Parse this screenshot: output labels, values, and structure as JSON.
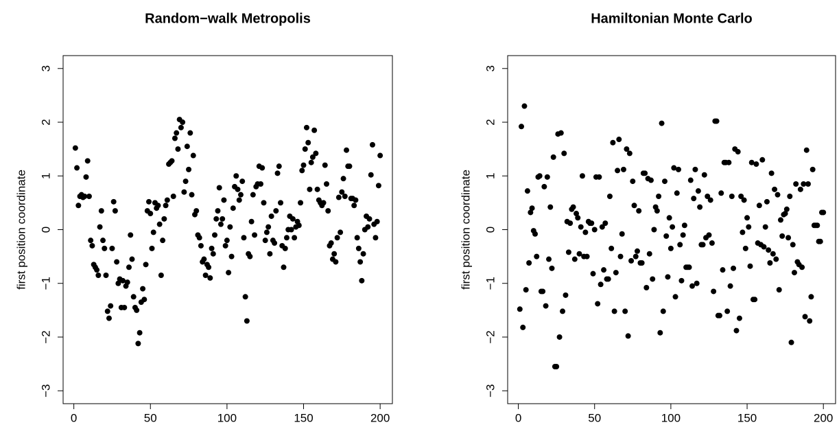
{
  "chart_data": [
    {
      "type": "scatter",
      "title": "Random−walk Metropolis",
      "ylabel": "first position coordinate",
      "color": "#000000",
      "x": [
        1,
        2,
        3,
        4,
        5,
        6,
        7,
        8,
        9,
        10,
        11,
        12,
        13,
        14,
        15,
        16,
        17,
        18,
        19,
        20,
        21,
        22,
        23,
        24,
        25,
        26,
        27,
        28,
        29,
        30,
        31,
        32,
        33,
        34,
        35,
        36,
        37,
        38,
        39,
        40,
        41,
        42,
        43,
        44,
        45,
        46,
        47,
        48,
        49,
        50,
        51,
        52,
        53,
        54,
        55,
        56,
        57,
        58,
        59,
        60,
        61,
        62,
        63,
        64,
        65,
        66,
        67,
        68,
        69,
        70,
        71,
        72,
        73,
        74,
        75,
        76,
        77,
        78,
        79,
        80,
        81,
        82,
        83,
        84,
        85,
        86,
        87,
        88,
        89,
        90,
        91,
        92,
        93,
        94,
        95,
        96,
        97,
        98,
        99,
        100,
        101,
        102,
        103,
        104,
        105,
        106,
        107,
        108,
        109,
        110,
        111,
        112,
        113,
        114,
        115,
        116,
        117,
        118,
        119,
        120,
        121,
        122,
        123,
        124,
        125,
        126,
        127,
        128,
        129,
        130,
        131,
        132,
        133,
        134,
        135,
        136,
        137,
        138,
        139,
        140,
        141,
        142,
        143,
        144,
        145,
        146,
        147,
        148,
        149,
        150,
        151,
        152,
        153,
        154,
        155,
        156,
        157,
        158,
        159,
        160,
        161,
        162,
        163,
        164,
        165,
        166,
        167,
        168,
        169,
        170,
        171,
        172,
        173,
        174,
        175,
        176,
        177,
        178,
        179,
        180,
        181,
        182,
        183,
        184,
        185,
        186,
        187,
        188,
        189,
        190,
        191,
        192,
        193,
        194,
        195,
        196,
        197,
        198,
        199,
        200
      ],
      "values": [
        1.52,
        1.15,
        0.45,
        0.62,
        0.65,
        0.6,
        0.62,
        0.98,
        1.28,
        0.62,
        -0.2,
        -0.3,
        -0.65,
        -0.7,
        -0.75,
        -0.85,
        0.05,
        0.35,
        -0.2,
        -0.35,
        -0.85,
        -1.52,
        -1.65,
        -1.42,
        -0.35,
        0.52,
        0.35,
        -0.6,
        -1.0,
        -0.92,
        -1.45,
        -0.95,
        -1.45,
        -1.05,
        -0.98,
        -0.7,
        -0.1,
        -0.55,
        -1.25,
        -1.45,
        -1.5,
        -2.12,
        -1.92,
        -1.35,
        -1.1,
        -1.3,
        -0.65,
        0.35,
        0.52,
        0.3,
        -0.35,
        -0.05,
        0.5,
        0.4,
        0.45,
        0.1,
        -0.85,
        -0.2,
        0.2,
        0.45,
        0.55,
        1.22,
        1.25,
        1.28,
        0.62,
        1.7,
        1.8,
        1.5,
        2.05,
        1.9,
        2.0,
        0.7,
        0.9,
        1.55,
        1.12,
        1.8,
        0.65,
        1.38,
        0.28,
        0.35,
        -0.1,
        -0.15,
        -0.3,
        -0.6,
        -0.55,
        -0.85,
        -0.65,
        -0.7,
        -0.9,
        -0.35,
        -0.45,
        -0.1,
        0.2,
        0.35,
        0.78,
        0.1,
        0.2,
        0.55,
        -0.3,
        -0.2,
        -0.8,
        0.05,
        -0.5,
        0.4,
        0.8,
        1.0,
        0.75,
        0.55,
        0.65,
        0.9,
        -0.15,
        -1.25,
        -1.7,
        -0.45,
        -0.5,
        0.15,
        0.65,
        -0.1,
        0.8,
        0.85,
        1.18,
        0.85,
        1.15,
        0.5,
        -0.2,
        -0.05,
        0.05,
        -0.45,
        0.25,
        -0.2,
        -0.25,
        0.35,
        1.05,
        1.18,
        0.5,
        -0.3,
        -0.7,
        -0.35,
        -0.15,
        0.0,
        0.25,
        0.0,
        0.2,
        -0.15,
        0.05,
        0.15,
        0.08,
        0.5,
        1.1,
        1.2,
        1.5,
        1.9,
        1.62,
        0.75,
        1.25,
        1.35,
        1.85,
        1.42,
        0.75,
        0.55,
        0.5,
        0.45,
        0.5,
        1.2,
        0.85,
        0.35,
        -0.3,
        -0.25,
        -0.55,
        -0.45,
        -0.6,
        -0.15,
        0.6,
        -0.05,
        0.7,
        0.95,
        0.62,
        1.48,
        1.18,
        1.18,
        0.58,
        0.58,
        0.45,
        0.55,
        -0.15,
        -0.35,
        -0.6,
        -0.95,
        -0.45,
        0.0,
        0.25,
        0.05,
        0.2,
        1.02,
        1.58,
        0.1,
        -0.15,
        0.15,
        0.82,
        1.38
      ],
      "xlim": [
        -7,
        208
      ],
      "ylim": [
        -3.24,
        3.24
      ],
      "xticks": [
        0,
        50,
        100,
        150,
        200
      ],
      "yticks": [
        {
          "value": -3,
          "label": "−3"
        },
        {
          "value": -2,
          "label": "−2"
        },
        {
          "value": -1,
          "label": "−1"
        },
        0,
        1,
        2,
        3
      ]
    },
    {
      "type": "scatter",
      "title": "Hamiltonian Monte Carlo",
      "ylabel": "first position coordinate",
      "color": "#000000",
      "x": [
        1,
        2,
        3,
        4,
        5,
        6,
        7,
        8,
        9,
        10,
        11,
        12,
        13,
        14,
        15,
        16,
        17,
        18,
        19,
        20,
        21,
        22,
        23,
        24,
        25,
        26,
        27,
        28,
        29,
        30,
        31,
        32,
        33,
        34,
        35,
        36,
        37,
        38,
        39,
        40,
        41,
        42,
        43,
        44,
        45,
        46,
        47,
        48,
        49,
        50,
        51,
        52,
        53,
        54,
        55,
        56,
        57,
        58,
        59,
        60,
        61,
        62,
        63,
        64,
        65,
        66,
        67,
        68,
        69,
        70,
        71,
        72,
        73,
        74,
        75,
        76,
        77,
        78,
        79,
        80,
        81,
        82,
        83,
        84,
        85,
        86,
        87,
        88,
        89,
        90,
        91,
        92,
        93,
        94,
        95,
        96,
        97,
        98,
        99,
        100,
        101,
        102,
        103,
        104,
        105,
        106,
        107,
        108,
        109,
        110,
        111,
        112,
        113,
        114,
        115,
        116,
        117,
        118,
        119,
        120,
        121,
        122,
        123,
        124,
        125,
        126,
        127,
        128,
        129,
        130,
        131,
        132,
        133,
        134,
        135,
        136,
        137,
        138,
        139,
        140,
        141,
        142,
        143,
        144,
        145,
        146,
        147,
        148,
        149,
        150,
        151,
        152,
        153,
        154,
        155,
        156,
        157,
        158,
        159,
        160,
        161,
        162,
        163,
        164,
        165,
        166,
        167,
        168,
        169,
        170,
        171,
        172,
        173,
        174,
        175,
        176,
        177,
        178,
        179,
        180,
        181,
        182,
        183,
        184,
        185,
        186,
        187,
        188,
        189,
        190,
        191,
        192,
        193,
        194,
        195,
        196,
        197,
        198,
        199,
        200
      ],
      "values": [
        -1.48,
        1.92,
        -1.82,
        2.3,
        -1.12,
        0.72,
        -0.62,
        0.32,
        0.4,
        -0.02,
        -0.08,
        -0.5,
        0.98,
        1.0,
        -1.15,
        -1.15,
        0.8,
        -1.42,
        0.98,
        -0.55,
        0.42,
        -0.72,
        1.35,
        -2.55,
        -2.55,
        1.78,
        -2.0,
        1.8,
        -1.52,
        1.42,
        -1.22,
        0.15,
        -0.42,
        0.12,
        0.38,
        0.42,
        -0.55,
        0.3,
        0.22,
        -0.45,
        0.05,
        1.0,
        -0.5,
        -0.05,
        -0.5,
        0.15,
        0.12,
        0.12,
        -0.82,
        0.0,
        0.98,
        -1.38,
        0.98,
        -1.02,
        0.05,
        -0.75,
        0.12,
        -0.92,
        -0.92,
        0.62,
        -0.35,
        1.62,
        -1.52,
        -0.8,
        1.1,
        1.68,
        -0.5,
        -0.08,
        1.12,
        -1.52,
        1.5,
        -1.98,
        1.42,
        -0.58,
        0.9,
        0.45,
        -0.5,
        -0.4,
        0.35,
        -0.62,
        -0.62,
        1.05,
        1.05,
        -1.08,
        0.95,
        -0.45,
        0.92,
        -0.92,
        0.0,
        0.42,
        0.35,
        0.62,
        -1.92,
        1.98,
        -1.52,
        0.9,
        -0.12,
        -0.88,
        0.22,
        -0.35,
        0.05,
        1.15,
        -1.25,
        0.68,
        1.12,
        -0.28,
        -0.95,
        -0.1,
        0.08,
        -0.7,
        -0.7,
        -0.7,
        0.92,
        -1.05,
        0.58,
        1.12,
        -1.0,
        0.72,
        0.42,
        -0.28,
        -0.28,
        1.02,
        -0.15,
        0.62,
        -0.1,
        0.55,
        -0.25,
        -1.15,
        2.02,
        2.02,
        -1.6,
        -1.6,
        0.68,
        -0.75,
        1.25,
        1.25,
        -1.52,
        1.25,
        -1.05,
        0.62,
        -0.72,
        1.5,
        -1.88,
        1.45,
        -1.65,
        0.62,
        -0.05,
        0.55,
        -0.35,
        0.22,
        0.05,
        -0.68,
        1.25,
        -1.3,
        -1.3,
        1.22,
        -0.25,
        0.45,
        -0.28,
        1.3,
        -0.32,
        0.05,
        0.52,
        -0.38,
        -0.62,
        1.05,
        -0.45,
        0.75,
        -0.55,
        0.65,
        -1.12,
        0.18,
        -0.12,
        0.28,
        0.3,
        0.38,
        -0.15,
        0.62,
        -2.1,
        -0.28,
        -0.8,
        0.85,
        -0.6,
        -0.65,
        0.75,
        -0.7,
        0.85,
        -1.62,
        1.48,
        0.85,
        -1.7,
        -1.25,
        1.12,
        0.08,
        0.08,
        0.08,
        -0.22,
        -0.22,
        0.32,
        0.32
      ],
      "xlim": [
        -7,
        208
      ],
      "ylim": [
        -3.24,
        3.24
      ],
      "xticks": [
        0,
        50,
        100,
        150,
        200
      ],
      "yticks": [
        {
          "value": -3,
          "label": "−3"
        },
        {
          "value": -2,
          "label": "−2"
        },
        {
          "value": -1,
          "label": "−1"
        },
        0,
        1,
        2,
        3
      ]
    }
  ]
}
